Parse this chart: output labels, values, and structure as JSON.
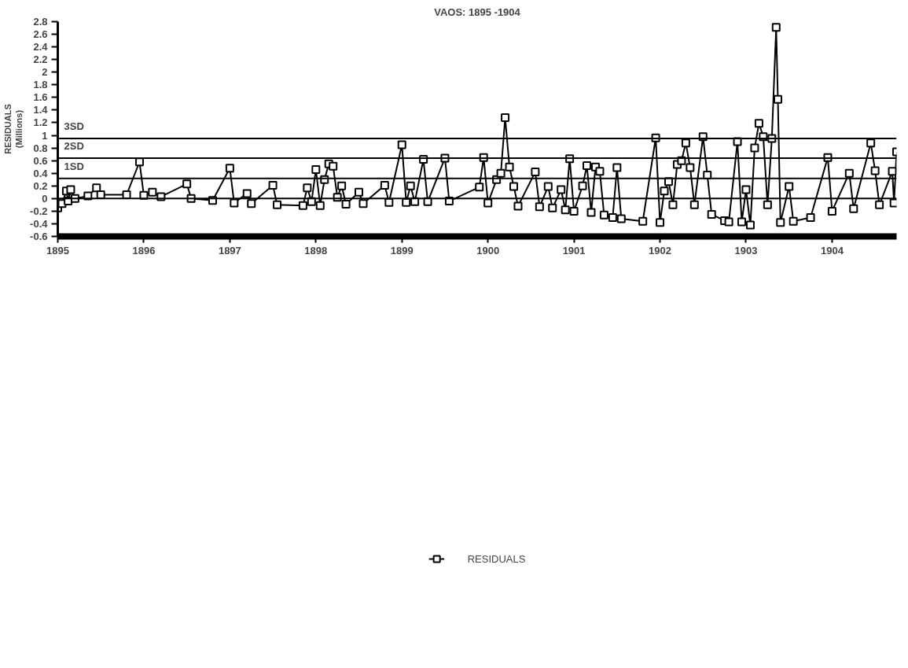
{
  "chart_data": {
    "type": "line",
    "title": "VAOS: 1895 -1904",
    "ylabel": "RESIDUALS\n(Millions)",
    "xlim": [
      1895,
      1904.75
    ],
    "xticks": [
      1895,
      1896,
      1897,
      1898,
      1899,
      1900,
      1901,
      1902,
      1903,
      1904
    ],
    "ylim": [
      -0.6,
      2.8
    ],
    "yticks": [
      -0.6,
      -0.4,
      -0.2,
      0,
      0.2,
      0.4,
      0.6,
      0.8,
      1,
      1.2,
      1.4,
      1.6,
      1.8,
      2,
      2.2,
      2.4,
      2.6,
      2.8
    ],
    "grid": false,
    "legend": "bottom",
    "marker": "square",
    "line_style": "solid",
    "ref_lines": [
      {
        "axis": "y",
        "value": 0.95,
        "label": "3SD",
        "color": "#000000"
      },
      {
        "axis": "y",
        "value": 0.64,
        "label": "2SD",
        "color": "#000000"
      },
      {
        "axis": "y",
        "value": 0.32,
        "label": "1SD",
        "color": "#000000"
      },
      {
        "axis": "y",
        "value": 0,
        "label": null,
        "color": "#000000"
      }
    ],
    "series": [
      {
        "name": "RESIDUALS",
        "color": "#000000",
        "x": [
          1895.0,
          1895.05,
          1895.1,
          1895.12,
          1895.15,
          1895.2,
          1895.35,
          1895.45,
          1895.5,
          1895.8,
          1895.95,
          1896.0,
          1896.1,
          1896.2,
          1896.5,
          1896.55,
          1896.8,
          1897.0,
          1897.05,
          1897.2,
          1897.25,
          1897.5,
          1897.55,
          1897.85,
          1897.9,
          1897.95,
          1898.0,
          1898.05,
          1898.1,
          1898.15,
          1898.2,
          1898.25,
          1898.3,
          1898.35,
          1898.5,
          1898.55,
          1898.8,
          1898.85,
          1899.0,
          1899.05,
          1899.1,
          1899.15,
          1899.25,
          1899.3,
          1899.5,
          1899.55,
          1899.9,
          1899.95,
          1900.0,
          1900.1,
          1900.15,
          1900.2,
          1900.25,
          1900.3,
          1900.35,
          1900.55,
          1900.6,
          1900.7,
          1900.75,
          1900.85,
          1900.9,
          1900.95,
          1901.0,
          1901.1,
          1901.15,
          1901.2,
          1901.25,
          1901.3,
          1901.35,
          1901.45,
          1901.5,
          1901.55,
          1901.8,
          1901.95,
          1902.0,
          1902.05,
          1902.1,
          1902.15,
          1902.2,
          1902.25,
          1902.3,
          1902.35,
          1902.4,
          1902.5,
          1902.55,
          1902.6,
          1902.75,
          1902.8,
          1902.9,
          1902.95,
          1903.0,
          1903.05,
          1903.1,
          1903.15,
          1903.2,
          1903.25,
          1903.3,
          1903.35,
          1903.37,
          1903.4,
          1903.5,
          1903.55,
          1903.75,
          1903.95,
          1904.0,
          1904.2,
          1904.25,
          1904.45,
          1904.5,
          1904.55,
          1904.7,
          1904.72,
          1904.75
        ],
        "values": [
          -0.15,
          -0.08,
          0.12,
          -0.04,
          0.14,
          0.0,
          0.04,
          0.17,
          0.06,
          0.06,
          0.58,
          0.05,
          0.1,
          0.03,
          0.23,
          0.0,
          -0.03,
          0.48,
          -0.07,
          0.08,
          -0.08,
          0.21,
          -0.1,
          -0.11,
          0.17,
          -0.05,
          0.46,
          -0.11,
          0.3,
          0.55,
          0.51,
          0.02,
          0.2,
          -0.09,
          0.1,
          -0.08,
          0.21,
          -0.06,
          0.85,
          -0.06,
          0.2,
          -0.05,
          0.62,
          -0.05,
          0.64,
          -0.04,
          0.18,
          0.65,
          -0.07,
          0.3,
          0.4,
          1.28,
          0.5,
          0.19,
          -0.12,
          0.42,
          -0.13,
          0.19,
          -0.15,
          0.14,
          -0.18,
          0.63,
          -0.2,
          0.2,
          0.52,
          -0.22,
          0.5,
          0.43,
          -0.26,
          -0.3,
          0.49,
          -0.32,
          -0.36,
          0.96,
          -0.38,
          0.12,
          0.27,
          -0.1,
          0.54,
          0.6,
          0.88,
          0.49,
          -0.1,
          0.98,
          0.37,
          -0.25,
          -0.35,
          -0.37,
          0.9,
          -0.37,
          0.14,
          -0.42,
          0.8,
          1.19,
          0.98,
          -0.1,
          0.95,
          2.71,
          1.57,
          -0.38,
          0.19,
          -0.36,
          -0.3,
          0.65,
          -0.2,
          0.4,
          -0.16,
          0.88,
          0.44,
          -0.1,
          0.43,
          -0.07,
          0.74
        ]
      }
    ]
  }
}
